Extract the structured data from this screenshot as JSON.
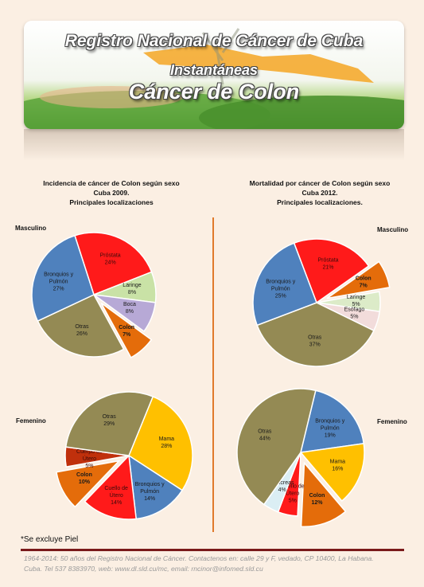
{
  "header": {
    "line1": "Registro Nacional de Cáncer de Cuba",
    "line2": "Instantáneas",
    "line3": "Cáncer de Colon"
  },
  "incidence_title": [
    "Incidencia de cáncer de Colon según sexo",
    "Cuba 2009.",
    "Principales localizaciones"
  ],
  "mortality_title": [
    "Mortalidad por cáncer de Colon según sexo",
    "Cuba 2012.",
    "Principales localizaciones."
  ],
  "labels": {
    "masculino_left": "Masculino",
    "masculino_right": "Masculino",
    "femenino_left": "Femenino",
    "femenino_right": "Femenino"
  },
  "footnote": "*Se excluye Piel",
  "footer": {
    "line1": "1964-2014: 50 años del Registro Nacional de Cáncer. Contactenos en: calle 29 y F, vedado, CP 10400, La Habana.",
    "line2": "Cuba. Tel 537 8383970, web: www.dl.sld.cu/mc, email: rncinor@infomed.sld.cu"
  },
  "chart_data": [
    {
      "type": "pie",
      "title": "Incidencia de cáncer de Colon según sexo Cuba 2009. Principales localizaciones",
      "group": "Masculino",
      "slices": [
        {
          "label": "Próstata",
          "value": 24,
          "color": "#ff1a1a"
        },
        {
          "label": "Laringe",
          "value": 8,
          "color": "#c9e2a6"
        },
        {
          "label": "Boca",
          "value": 8,
          "color": "#b7a9d6"
        },
        {
          "label": "Colon",
          "value": 7,
          "color": "#e46c0a",
          "exploded": true
        },
        {
          "label": "Otras",
          "value": 26,
          "color": "#948a54"
        },
        {
          "label": "Bronquios y Pulmón",
          "value": 27,
          "color": "#4f81bd"
        }
      ]
    },
    {
      "type": "pie",
      "title": "Incidencia de cáncer de Colon según sexo Cuba 2009. Principales localizaciones",
      "group": "Femenino",
      "slices": [
        {
          "label": "Mama",
          "value": 28,
          "color": "#ffc000"
        },
        {
          "label": "Bronquios y Pulmón",
          "value": 14,
          "color": "#4f81bd"
        },
        {
          "label": "Cuello de Útero",
          "value": 14,
          "color": "#ff1a1a"
        },
        {
          "label": "Colon",
          "value": 10,
          "color": "#e46c0a",
          "exploded": true
        },
        {
          "label": "Cuerpo de Útero",
          "value": 5,
          "color": "#c0300c"
        },
        {
          "label": "Otras",
          "value": 29,
          "color": "#948a54"
        }
      ]
    },
    {
      "type": "pie",
      "title": "Mortalidad por cáncer de Colon según sexo Cuba 2012. Principales localizaciones.",
      "group": "Masculino",
      "slices": [
        {
          "label": "Próstata",
          "value": 21,
          "color": "#ff1a1a"
        },
        {
          "label": "Colon",
          "value": 7,
          "color": "#e46c0a",
          "exploded": true
        },
        {
          "label": "Laringe",
          "value": 5,
          "color": "#dcebc8"
        },
        {
          "label": "Esófago",
          "value": 5,
          "color": "#f2dcdb"
        },
        {
          "label": "Otras",
          "value": 37,
          "color": "#948a54"
        },
        {
          "label": "Bronquios y Pulmón",
          "value": 25,
          "color": "#4f81bd"
        }
      ]
    },
    {
      "type": "pie",
      "title": "Mortalidad por cáncer de Colon según sexo Cuba 2012. Principales localizaciones.",
      "group": "Femenino",
      "slices": [
        {
          "label": "Bronquios y Pulmón",
          "value": 19,
          "color": "#4f81bd"
        },
        {
          "label": "Mama",
          "value": 16,
          "color": "#ffc000"
        },
        {
          "label": "Colon",
          "value": 12,
          "color": "#e46c0a",
          "exploded": true
        },
        {
          "label": "Cuello de Útero",
          "value": 5,
          "color": "#ff1a1a"
        },
        {
          "label": "Páncreas",
          "value": 4,
          "color": "#dbeef4"
        },
        {
          "label": "Otras",
          "value": 44,
          "color": "#948a54"
        }
      ]
    }
  ]
}
